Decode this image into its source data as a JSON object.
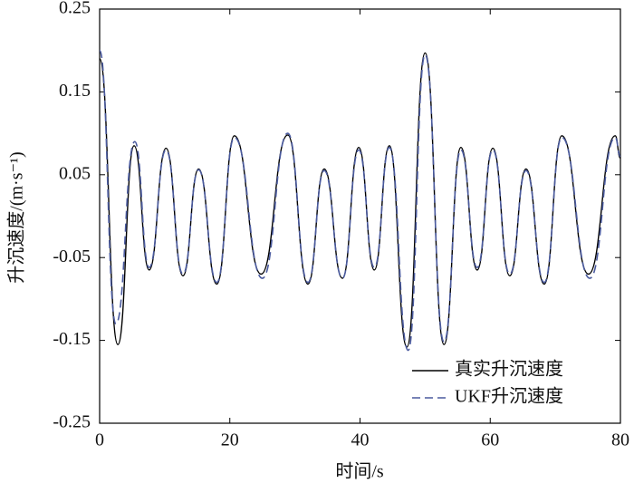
{
  "chart_data": {
    "type": "line",
    "xlabel": "时间/s",
    "ylabel": "升沉速度/(m·s⁻¹)",
    "xlim": [
      0,
      80
    ],
    "ylim": [
      -0.25,
      0.25
    ],
    "xticks": [
      0,
      20,
      40,
      60,
      80
    ],
    "yticks": [
      0.25,
      0.15,
      0.05,
      -0.05,
      -0.15,
      -0.25
    ],
    "legend": "lower right",
    "series": [
      {
        "name": "真实升沉速度",
        "color": "#000000",
        "dash": false,
        "x": [
          0,
          2.8,
          5.3,
          7.6,
          10.2,
          12.8,
          15.2,
          18.0,
          20.7,
          24.8,
          28.9,
          32.0,
          34.5,
          37.3,
          39.8,
          42.2,
          44.5,
          47.2,
          50.0,
          52.9,
          55.5,
          58.0,
          60.4,
          63.0,
          65.5,
          68.3,
          71.0,
          75.1,
          79.2,
          80
        ],
        "values": [
          0.19,
          -0.155,
          0.085,
          -0.065,
          0.082,
          -0.072,
          0.057,
          -0.082,
          0.097,
          -0.07,
          0.098,
          -0.082,
          0.057,
          -0.075,
          0.083,
          -0.065,
          0.085,
          -0.158,
          0.197,
          -0.155,
          0.083,
          -0.065,
          0.082,
          -0.072,
          0.057,
          -0.082,
          0.097,
          -0.07,
          0.097,
          0.07
        ]
      },
      {
        "name": "UKF升沉速度",
        "color": "#4a5a9e",
        "dash": true,
        "x": [
          0,
          2.5,
          5.4,
          7.6,
          10.2,
          12.8,
          15.2,
          18.0,
          20.7,
          25.0,
          28.9,
          32.0,
          34.5,
          37.3,
          39.8,
          42.2,
          44.5,
          47.4,
          50.0,
          52.9,
          55.5,
          58.0,
          60.4,
          63.0,
          65.5,
          68.3,
          71.0,
          75.3,
          79.2,
          80
        ],
        "values": [
          0.2,
          -0.13,
          0.09,
          -0.062,
          0.08,
          -0.07,
          0.056,
          -0.08,
          0.095,
          -0.075,
          0.1,
          -0.08,
          0.055,
          -0.075,
          0.08,
          -0.062,
          0.083,
          -0.162,
          0.195,
          -0.152,
          0.08,
          -0.062,
          0.08,
          -0.07,
          0.055,
          -0.08,
          0.095,
          -0.075,
          0.095,
          0.072
        ]
      }
    ]
  }
}
